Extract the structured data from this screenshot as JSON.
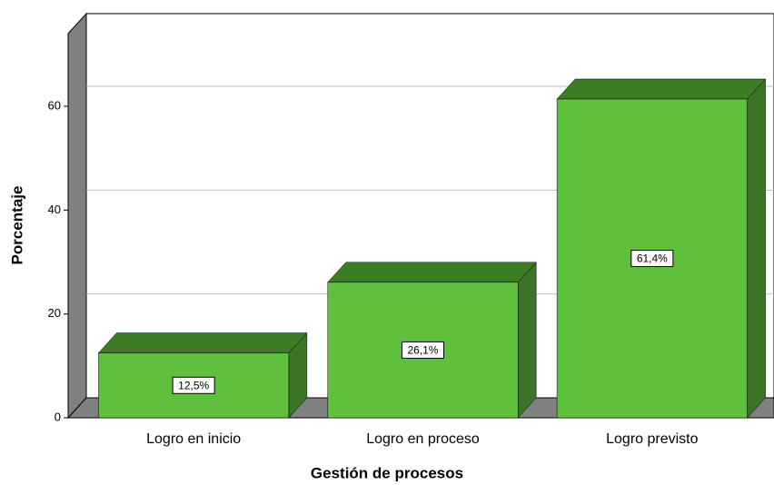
{
  "chart_data": {
    "type": "bar3d",
    "x_label": "Gestión de procesos",
    "y_label": "Porcentaje",
    "categories": [
      "Logro en inicio",
      "Logro en proceso",
      "Logro previsto"
    ],
    "values": [
      12.5,
      26.1,
      61.4
    ],
    "value_labels": [
      "12,5%",
      "26,1%",
      "61,4%"
    ],
    "color": "#5fc03b",
    "top_color": "#3d7d26",
    "side_color": "#3a7424",
    "ylim": [
      0,
      74
    ],
    "yticks": [
      0,
      20,
      40,
      60
    ],
    "grid": true
  }
}
